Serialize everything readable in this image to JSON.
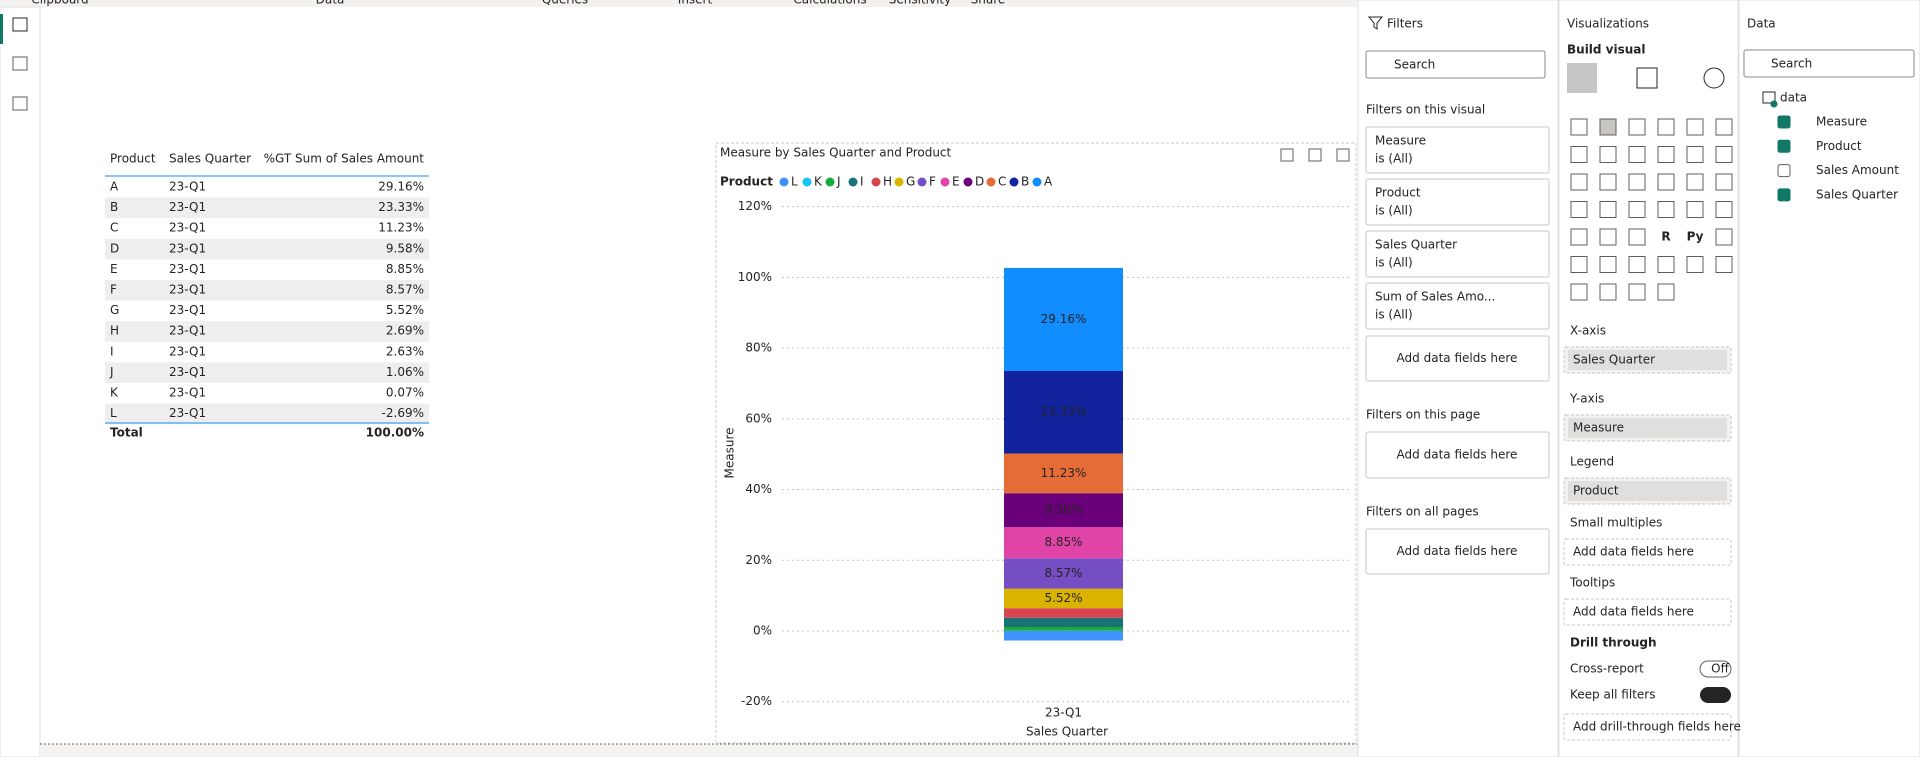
{
  "ribbon": [
    "Clipboard",
    "Data",
    "Queries",
    "Insert",
    "Calculations",
    "Sensitivity",
    "Share"
  ],
  "table": {
    "columns": [
      "Product",
      "Sales Quarter",
      "%GT Sum of Sales Amount"
    ],
    "rows": [
      [
        "A",
        "23-Q1",
        "29.16%"
      ],
      [
        "B",
        "23-Q1",
        "23.33%"
      ],
      [
        "C",
        "23-Q1",
        "11.23%"
      ],
      [
        "D",
        "23-Q1",
        "9.58%"
      ],
      [
        "E",
        "23-Q1",
        "8.85%"
      ],
      [
        "F",
        "23-Q1",
        "8.57%"
      ],
      [
        "G",
        "23-Q1",
        "5.52%"
      ],
      [
        "H",
        "23-Q1",
        "2.69%"
      ],
      [
        "I",
        "23-Q1",
        "2.63%"
      ],
      [
        "J",
        "23-Q1",
        "1.06%"
      ],
      [
        "K",
        "23-Q1",
        "0.07%"
      ],
      [
        "L",
        "23-Q1",
        "-2.69%"
      ]
    ],
    "total": [
      "Total",
      "100.00%"
    ]
  },
  "chart_data": {
    "type": "stacked_bar",
    "title": "Measure by Sales Quarter and Product",
    "legend_title": "Product",
    "xlabel": "Sales Quarter",
    "ylabel": "Measure",
    "categories": [
      "23-Q1"
    ],
    "ylim": [
      -22,
      122
    ],
    "yticks": [
      {
        "value": -20,
        "label": "-20%"
      },
      {
        "value": 0,
        "label": "0%"
      },
      {
        "value": 20,
        "label": "20%"
      },
      {
        "value": 40,
        "label": "40%"
      },
      {
        "value": 60,
        "label": "60%"
      },
      {
        "value": 80,
        "label": "80%"
      },
      {
        "value": 100,
        "label": "100%"
      },
      {
        "value": 120,
        "label": "120%"
      }
    ],
    "grid": true,
    "series": [
      {
        "name": "L",
        "color": "#4092FF",
        "values": [
          -2.69
        ],
        "value_labels": [
          null
        ]
      },
      {
        "name": "K",
        "color": "#15C6F4",
        "values": [
          0.07
        ],
        "value_labels": [
          null
        ]
      },
      {
        "name": "J",
        "color": "#1AAB40",
        "values": [
          1.06
        ],
        "value_labels": [
          null
        ]
      },
      {
        "name": "I",
        "color": "#197278",
        "values": [
          2.63
        ],
        "value_labels": [
          null
        ]
      },
      {
        "name": "H",
        "color": "#D64550",
        "values": [
          2.69
        ],
        "value_labels": [
          null
        ]
      },
      {
        "name": "G",
        "color": "#D9B300",
        "values": [
          5.52
        ],
        "value_labels": [
          "5.52%"
        ]
      },
      {
        "name": "F",
        "color": "#744EC2",
        "values": [
          8.57
        ],
        "value_labels": [
          "8.57%"
        ]
      },
      {
        "name": "E",
        "color": "#E044A7",
        "values": [
          8.85
        ],
        "value_labels": [
          "8.85%"
        ]
      },
      {
        "name": "D",
        "color": "#6B007B",
        "values": [
          9.58
        ],
        "value_labels": [
          "9.58%"
        ]
      },
      {
        "name": "C",
        "color": "#E66C37",
        "values": [
          11.23
        ],
        "value_labels": [
          "11.23%"
        ]
      },
      {
        "name": "B",
        "color": "#12239E",
        "values": [
          23.33
        ],
        "value_labels": [
          "23.33%"
        ]
      },
      {
        "name": "A",
        "color": "#118DFF",
        "values": [
          29.16
        ],
        "value_labels": [
          "29.16%"
        ]
      }
    ]
  },
  "filters": {
    "title": "Filters",
    "search": "Search",
    "on_visual": "Filters on this visual",
    "cards": [
      [
        "Measure",
        "is (All)"
      ],
      [
        "Product",
        "is (All)"
      ],
      [
        "Sales Quarter",
        "is (All)"
      ],
      [
        "Sum of Sales Amo...",
        "is (All)"
      ]
    ],
    "add_visual": "Add data fields here",
    "on_page": "Filters on this page",
    "add_page": "Add data fields here",
    "on_all": "Filters on all pages",
    "add_all": "Add data fields here"
  },
  "visualizations": {
    "title": "Visualizations",
    "build": "Build visual",
    "icon_texts": [
      "R",
      "Py"
    ],
    "wells": [
      {
        "label": "X-axis",
        "field": "Sales Quarter"
      },
      {
        "label": "Y-axis",
        "field": "Measure"
      },
      {
        "label": "Legend",
        "field": "Product"
      },
      {
        "label": "Small multiples",
        "placeholder": "Add data fields here"
      },
      {
        "label": "Tooltips",
        "placeholder": "Add data fields here"
      }
    ],
    "drill": "Drill through",
    "cross": "Cross-report",
    "cross_state": "Off",
    "keep": "Keep all filters",
    "keep_state": "On",
    "add_drill": "Add drill-through fields here"
  },
  "data_pane": {
    "title": "Data",
    "search": "Search",
    "table": "data",
    "fields": [
      {
        "name": "Measure",
        "checked": true
      },
      {
        "name": "Product",
        "checked": true
      },
      {
        "name": "Sales Amount",
        "checked": false
      },
      {
        "name": "Sales Quarter",
        "checked": true
      }
    ]
  }
}
